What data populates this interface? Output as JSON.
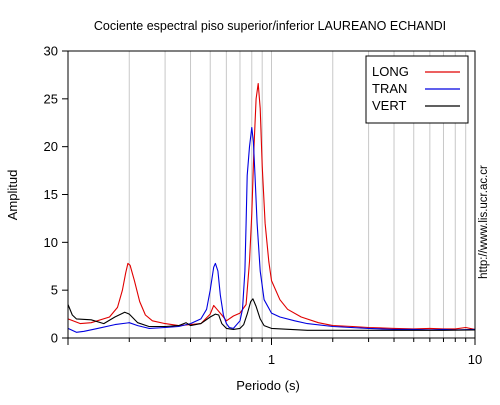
{
  "chart_data": {
    "type": "line",
    "title": "Cociente espectral piso superior/inferior LAUREANO ECHANDI",
    "xlabel": "Periodo (s)",
    "ylabel": "Amplitud",
    "xscale": "log",
    "xlim": [
      0.1,
      10
    ],
    "ylim": [
      0,
      30
    ],
    "x_tick_labels": [
      {
        "value": 1,
        "label": "1"
      },
      {
        "value": 10,
        "label": "10"
      }
    ],
    "y_ticks": [
      0,
      5,
      10,
      15,
      20,
      25,
      30
    ],
    "grid": "vertical minor (log)",
    "legend_position": "top-right",
    "credit": "http://www.lis.ucr.ac.cr",
    "series": [
      {
        "name": "LONG",
        "color": "#e00000",
        "points": [
          [
            0.1,
            2.0
          ],
          [
            0.115,
            1.5
          ],
          [
            0.13,
            1.6
          ],
          [
            0.16,
            2.2
          ],
          [
            0.175,
            3.2
          ],
          [
            0.185,
            5.0
          ],
          [
            0.192,
            6.8
          ],
          [
            0.197,
            7.8
          ],
          [
            0.202,
            7.6
          ],
          [
            0.212,
            6.0
          ],
          [
            0.225,
            3.8
          ],
          [
            0.24,
            2.4
          ],
          [
            0.26,
            1.8
          ],
          [
            0.3,
            1.5
          ],
          [
            0.35,
            1.3
          ],
          [
            0.4,
            1.4
          ],
          [
            0.45,
            1.5
          ],
          [
            0.5,
            2.5
          ],
          [
            0.52,
            3.4
          ],
          [
            0.54,
            3.0
          ],
          [
            0.57,
            2.4
          ],
          [
            0.6,
            1.8
          ],
          [
            0.65,
            2.3
          ],
          [
            0.7,
            2.6
          ],
          [
            0.75,
            3.5
          ],
          [
            0.78,
            8.0
          ],
          [
            0.8,
            13.0
          ],
          [
            0.82,
            20.0
          ],
          [
            0.84,
            25.0
          ],
          [
            0.86,
            26.6
          ],
          [
            0.88,
            24.0
          ],
          [
            0.9,
            18.0
          ],
          [
            0.93,
            12.0
          ],
          [
            0.97,
            8.0
          ],
          [
            1.0,
            6.0
          ],
          [
            1.1,
            4.0
          ],
          [
            1.2,
            3.0
          ],
          [
            1.4,
            2.2
          ],
          [
            1.7,
            1.6
          ],
          [
            2.0,
            1.3
          ],
          [
            2.5,
            1.2
          ],
          [
            3.0,
            1.1
          ],
          [
            4.0,
            1.0
          ],
          [
            5.0,
            0.95
          ],
          [
            6.0,
            1.0
          ],
          [
            7.0,
            0.95
          ],
          [
            8.0,
            0.95
          ],
          [
            9.0,
            1.1
          ],
          [
            10.0,
            0.9
          ]
        ]
      },
      {
        "name": "TRAN",
        "color": "#0000e0",
        "points": [
          [
            0.1,
            1.0
          ],
          [
            0.11,
            0.6
          ],
          [
            0.12,
            0.7
          ],
          [
            0.14,
            1.0
          ],
          [
            0.17,
            1.4
          ],
          [
            0.2,
            1.6
          ],
          [
            0.22,
            1.3
          ],
          [
            0.25,
            1.0
          ],
          [
            0.3,
            1.1
          ],
          [
            0.35,
            1.2
          ],
          [
            0.4,
            1.5
          ],
          [
            0.45,
            2.0
          ],
          [
            0.48,
            3.0
          ],
          [
            0.5,
            5.0
          ],
          [
            0.52,
            7.4
          ],
          [
            0.53,
            7.8
          ],
          [
            0.545,
            7.0
          ],
          [
            0.56,
            4.5
          ],
          [
            0.58,
            2.4
          ],
          [
            0.6,
            1.5
          ],
          [
            0.62,
            1.1
          ],
          [
            0.65,
            1.0
          ],
          [
            0.7,
            1.8
          ],
          [
            0.72,
            3.0
          ],
          [
            0.74,
            7.0
          ],
          [
            0.75,
            12.0
          ],
          [
            0.76,
            17.0
          ],
          [
            0.78,
            20.0
          ],
          [
            0.8,
            22.0
          ],
          [
            0.815,
            20.5
          ],
          [
            0.83,
            17.0
          ],
          [
            0.85,
            12.0
          ],
          [
            0.88,
            7.0
          ],
          [
            0.92,
            4.0
          ],
          [
            1.0,
            2.6
          ],
          [
            1.1,
            2.2
          ],
          [
            1.3,
            1.8
          ],
          [
            1.5,
            1.5
          ],
          [
            2.0,
            1.2
          ],
          [
            3.0,
            1.0
          ],
          [
            4.0,
            0.9
          ],
          [
            5.0,
            0.9
          ],
          [
            6.0,
            0.85
          ],
          [
            7.0,
            0.9
          ],
          [
            8.0,
            0.85
          ],
          [
            10.0,
            0.9
          ]
        ]
      },
      {
        "name": "VERT",
        "color": "#000000",
        "points": [
          [
            0.1,
            3.5
          ],
          [
            0.105,
            2.4
          ],
          [
            0.11,
            2.0
          ],
          [
            0.13,
            1.9
          ],
          [
            0.15,
            1.5
          ],
          [
            0.17,
            2.2
          ],
          [
            0.19,
            2.7
          ],
          [
            0.2,
            2.5
          ],
          [
            0.22,
            1.6
          ],
          [
            0.25,
            1.2
          ],
          [
            0.3,
            1.2
          ],
          [
            0.35,
            1.3
          ],
          [
            0.38,
            1.6
          ],
          [
            0.4,
            1.3
          ],
          [
            0.45,
            1.5
          ],
          [
            0.5,
            2.2
          ],
          [
            0.53,
            2.5
          ],
          [
            0.55,
            2.4
          ],
          [
            0.57,
            1.5
          ],
          [
            0.6,
            1.0
          ],
          [
            0.65,
            0.9
          ],
          [
            0.7,
            1.0
          ],
          [
            0.73,
            1.4
          ],
          [
            0.76,
            2.5
          ],
          [
            0.79,
            3.8
          ],
          [
            0.81,
            4.1
          ],
          [
            0.84,
            3.3
          ],
          [
            0.88,
            2.0
          ],
          [
            0.92,
            1.3
          ],
          [
            1.0,
            1.0
          ],
          [
            1.5,
            0.8
          ],
          [
            2.0,
            0.8
          ],
          [
            3.0,
            0.8
          ],
          [
            5.0,
            0.8
          ],
          [
            7.0,
            0.8
          ],
          [
            10.0,
            0.85
          ]
        ]
      }
    ]
  }
}
